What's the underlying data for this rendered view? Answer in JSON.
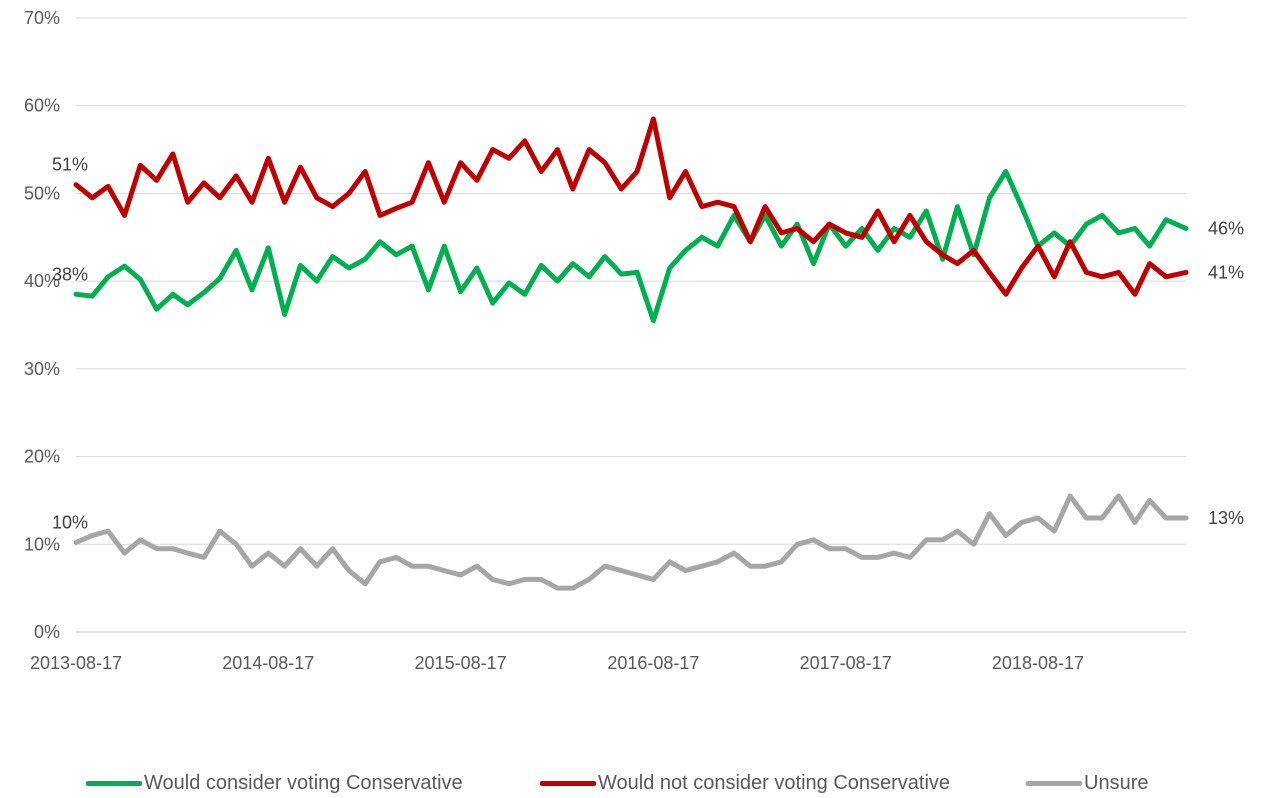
{
  "chart_data": {
    "type": "line",
    "title": "",
    "xlabel": "",
    "ylabel": "",
    "x_ticks": [
      "2013-08-17",
      "2014-08-17",
      "2015-08-17",
      "2016-08-17",
      "2017-08-17",
      "2018-08-17"
    ],
    "x_range": [
      "2013-08-17",
      "2019-05-25"
    ],
    "y_ticks": [
      "0%",
      "10%",
      "20%",
      "30%",
      "40%",
      "50%",
      "60%",
      "70%"
    ],
    "ylim": [
      0,
      70
    ],
    "grid": true,
    "legend_position": "bottom",
    "series": [
      {
        "name": "Would consider voting Conservative",
        "color": "#00B050",
        "start_label": "38%",
        "end_label": "46%",
        "points": [
          [
            "2013-08-17",
            38.5
          ],
          [
            "2013-09-17",
            38.3
          ],
          [
            "2013-10-17",
            40.5
          ],
          [
            "2013-11-17",
            41.7
          ],
          [
            "2013-12-17",
            40.2
          ],
          [
            "2014-01-17",
            36.8
          ],
          [
            "2014-02-17",
            38.5
          ],
          [
            "2014-03-17",
            37.3
          ],
          [
            "2014-04-17",
            38.7
          ],
          [
            "2014-05-17",
            40.3
          ],
          [
            "2014-06-17",
            43.5
          ],
          [
            "2014-07-17",
            39.0
          ],
          [
            "2014-08-17",
            43.8
          ],
          [
            "2014-09-17",
            36.2
          ],
          [
            "2014-10-17",
            41.8
          ],
          [
            "2014-11-17",
            40.0
          ],
          [
            "2014-12-17",
            42.8
          ],
          [
            "2015-01-17",
            41.5
          ],
          [
            "2015-02-17",
            42.5
          ],
          [
            "2015-03-17",
            44.5
          ],
          [
            "2015-04-17",
            43.0
          ],
          [
            "2015-05-17",
            44.0
          ],
          [
            "2015-06-17",
            39.0
          ],
          [
            "2015-07-17",
            44.0
          ],
          [
            "2015-08-17",
            38.8
          ],
          [
            "2015-09-17",
            41.5
          ],
          [
            "2015-10-17",
            37.5
          ],
          [
            "2015-11-17",
            39.8
          ],
          [
            "2015-12-17",
            38.5
          ],
          [
            "2016-01-17",
            41.8
          ],
          [
            "2016-02-17",
            40.0
          ],
          [
            "2016-03-17",
            42.0
          ],
          [
            "2016-04-17",
            40.5
          ],
          [
            "2016-05-17",
            42.8
          ],
          [
            "2016-06-17",
            40.8
          ],
          [
            "2016-07-17",
            41.0
          ],
          [
            "2016-08-17",
            35.5
          ],
          [
            "2016-09-17",
            41.5
          ],
          [
            "2016-10-17",
            43.5
          ],
          [
            "2016-11-17",
            45.0
          ],
          [
            "2016-12-17",
            44.0
          ],
          [
            "2017-01-17",
            47.5
          ],
          [
            "2017-02-17",
            44.5
          ],
          [
            "2017-03-17",
            47.5
          ],
          [
            "2017-04-17",
            44.0
          ],
          [
            "2017-05-17",
            46.5
          ],
          [
            "2017-06-17",
            42.0
          ],
          [
            "2017-07-17",
            46.5
          ],
          [
            "2017-08-17",
            44.0
          ],
          [
            "2017-09-17",
            46.0
          ],
          [
            "2017-10-17",
            43.5
          ],
          [
            "2017-11-17",
            46.0
          ],
          [
            "2017-12-17",
            45.0
          ],
          [
            "2018-01-17",
            48.0
          ],
          [
            "2018-02-17",
            42.5
          ],
          [
            "2018-03-17",
            48.5
          ],
          [
            "2018-04-17",
            43.0
          ],
          [
            "2018-05-17",
            49.5
          ],
          [
            "2018-06-17",
            52.5
          ],
          [
            "2018-07-17",
            48.5
          ],
          [
            "2018-08-17",
            44.0
          ],
          [
            "2018-09-17",
            45.5
          ],
          [
            "2018-10-17",
            44.0
          ],
          [
            "2018-11-17",
            46.5
          ],
          [
            "2018-12-17",
            47.5
          ],
          [
            "2019-01-17",
            45.5
          ],
          [
            "2019-02-17",
            46.0
          ],
          [
            "2019-03-17",
            44.0
          ],
          [
            "2019-04-17",
            47.0
          ],
          [
            "2019-05-25",
            46.0
          ]
        ]
      },
      {
        "name": "Would not consider voting Conservative",
        "color": "#C00000",
        "start_label": "51%",
        "end_label": "41%",
        "points": [
          [
            "2013-08-17",
            51.0
          ],
          [
            "2013-09-17",
            49.5
          ],
          [
            "2013-10-17",
            50.8
          ],
          [
            "2013-11-17",
            47.5
          ],
          [
            "2013-12-17",
            53.2
          ],
          [
            "2014-01-17",
            51.5
          ],
          [
            "2014-02-17",
            54.5
          ],
          [
            "2014-03-17",
            49.0
          ],
          [
            "2014-04-17",
            51.2
          ],
          [
            "2014-05-17",
            49.5
          ],
          [
            "2014-06-17",
            52.0
          ],
          [
            "2014-07-17",
            49.0
          ],
          [
            "2014-08-17",
            54.0
          ],
          [
            "2014-09-17",
            49.0
          ],
          [
            "2014-10-17",
            53.0
          ],
          [
            "2014-11-17",
            49.5
          ],
          [
            "2014-12-17",
            48.5
          ],
          [
            "2015-01-17",
            50.0
          ],
          [
            "2015-02-17",
            52.5
          ],
          [
            "2015-03-17",
            47.5
          ],
          [
            "2015-04-17",
            48.3
          ],
          [
            "2015-05-17",
            49.0
          ],
          [
            "2015-06-17",
            53.5
          ],
          [
            "2015-07-17",
            49.0
          ],
          [
            "2015-08-17",
            53.5
          ],
          [
            "2015-09-17",
            51.5
          ],
          [
            "2015-10-17",
            55.0
          ],
          [
            "2015-11-17",
            54.0
          ],
          [
            "2015-12-17",
            56.0
          ],
          [
            "2016-01-17",
            52.5
          ],
          [
            "2016-02-17",
            55.0
          ],
          [
            "2016-03-17",
            50.5
          ],
          [
            "2016-04-17",
            55.0
          ],
          [
            "2016-05-17",
            53.5
          ],
          [
            "2016-06-17",
            50.5
          ],
          [
            "2016-07-17",
            52.5
          ],
          [
            "2016-08-17",
            58.5
          ],
          [
            "2016-09-17",
            49.5
          ],
          [
            "2016-10-17",
            52.5
          ],
          [
            "2016-11-17",
            48.5
          ],
          [
            "2016-12-17",
            49.0
          ],
          [
            "2017-01-17",
            48.5
          ],
          [
            "2017-02-17",
            44.5
          ],
          [
            "2017-03-17",
            48.5
          ],
          [
            "2017-04-17",
            45.5
          ],
          [
            "2017-05-17",
            46.0
          ],
          [
            "2017-06-17",
            44.5
          ],
          [
            "2017-07-17",
            46.5
          ],
          [
            "2017-08-17",
            45.5
          ],
          [
            "2017-09-17",
            45.0
          ],
          [
            "2017-10-17",
            48.0
          ],
          [
            "2017-11-17",
            44.5
          ],
          [
            "2017-12-17",
            47.5
          ],
          [
            "2018-01-17",
            44.5
          ],
          [
            "2018-02-17",
            43.0
          ],
          [
            "2018-03-17",
            42.0
          ],
          [
            "2018-04-17",
            43.5
          ],
          [
            "2018-05-17",
            41.0
          ],
          [
            "2018-06-17",
            38.5
          ],
          [
            "2018-07-17",
            41.5
          ],
          [
            "2018-08-17",
            44.0
          ],
          [
            "2018-09-17",
            40.5
          ],
          [
            "2018-10-17",
            44.5
          ],
          [
            "2018-11-17",
            41.0
          ],
          [
            "2018-12-17",
            40.5
          ],
          [
            "2019-01-17",
            41.0
          ],
          [
            "2019-02-17",
            38.5
          ],
          [
            "2019-03-17",
            42.0
          ],
          [
            "2019-04-17",
            40.5
          ],
          [
            "2019-05-25",
            41.0
          ]
        ]
      },
      {
        "name": "Unsure",
        "color": "#A6A6A6",
        "start_label": "10%",
        "end_label": "13%",
        "points": [
          [
            "2013-08-17",
            10.2
          ],
          [
            "2013-09-17",
            11.0
          ],
          [
            "2013-10-17",
            11.5
          ],
          [
            "2013-11-17",
            9.0
          ],
          [
            "2013-12-17",
            10.5
          ],
          [
            "2014-01-17",
            9.5
          ],
          [
            "2014-02-17",
            9.5
          ],
          [
            "2014-03-17",
            9.0
          ],
          [
            "2014-04-17",
            8.5
          ],
          [
            "2014-05-17",
            11.5
          ],
          [
            "2014-06-17",
            10.0
          ],
          [
            "2014-07-17",
            7.5
          ],
          [
            "2014-08-17",
            9.0
          ],
          [
            "2014-09-17",
            7.5
          ],
          [
            "2014-10-17",
            9.5
          ],
          [
            "2014-11-17",
            7.5
          ],
          [
            "2014-12-17",
            9.5
          ],
          [
            "2015-01-17",
            7.0
          ],
          [
            "2015-02-17",
            5.5
          ],
          [
            "2015-03-17",
            8.0
          ],
          [
            "2015-04-17",
            8.5
          ],
          [
            "2015-05-17",
            7.5
          ],
          [
            "2015-06-17",
            7.5
          ],
          [
            "2015-07-17",
            7.0
          ],
          [
            "2015-08-17",
            6.5
          ],
          [
            "2015-09-17",
            7.5
          ],
          [
            "2015-10-17",
            6.0
          ],
          [
            "2015-11-17",
            5.5
          ],
          [
            "2015-12-17",
            6.0
          ],
          [
            "2016-01-17",
            6.0
          ],
          [
            "2016-02-17",
            5.0
          ],
          [
            "2016-03-17",
            5.0
          ],
          [
            "2016-04-17",
            6.0
          ],
          [
            "2016-05-17",
            7.5
          ],
          [
            "2016-06-17",
            7.0
          ],
          [
            "2016-07-17",
            6.5
          ],
          [
            "2016-08-17",
            6.0
          ],
          [
            "2016-09-17",
            8.0
          ],
          [
            "2016-10-17",
            7.0
          ],
          [
            "2016-11-17",
            7.5
          ],
          [
            "2016-12-17",
            8.0
          ],
          [
            "2017-01-17",
            9.0
          ],
          [
            "2017-02-17",
            7.5
          ],
          [
            "2017-03-17",
            7.5
          ],
          [
            "2017-04-17",
            8.0
          ],
          [
            "2017-05-17",
            10.0
          ],
          [
            "2017-06-17",
            10.5
          ],
          [
            "2017-07-17",
            9.5
          ],
          [
            "2017-08-17",
            9.5
          ],
          [
            "2017-09-17",
            8.5
          ],
          [
            "2017-10-17",
            8.5
          ],
          [
            "2017-11-17",
            9.0
          ],
          [
            "2017-12-17",
            8.5
          ],
          [
            "2018-01-17",
            10.5
          ],
          [
            "2018-02-17",
            10.5
          ],
          [
            "2018-03-17",
            11.5
          ],
          [
            "2018-04-17",
            10.0
          ],
          [
            "2018-05-17",
            13.5
          ],
          [
            "2018-06-17",
            11.0
          ],
          [
            "2018-07-17",
            12.5
          ],
          [
            "2018-08-17",
            13.0
          ],
          [
            "2018-09-17",
            11.5
          ],
          [
            "2018-10-17",
            15.5
          ],
          [
            "2018-11-17",
            13.0
          ],
          [
            "2018-12-17",
            13.0
          ],
          [
            "2019-01-17",
            15.5
          ],
          [
            "2019-02-17",
            12.5
          ],
          [
            "2019-03-17",
            15.0
          ],
          [
            "2019-04-17",
            13.0
          ],
          [
            "2019-05-25",
            13.0
          ]
        ]
      }
    ]
  }
}
